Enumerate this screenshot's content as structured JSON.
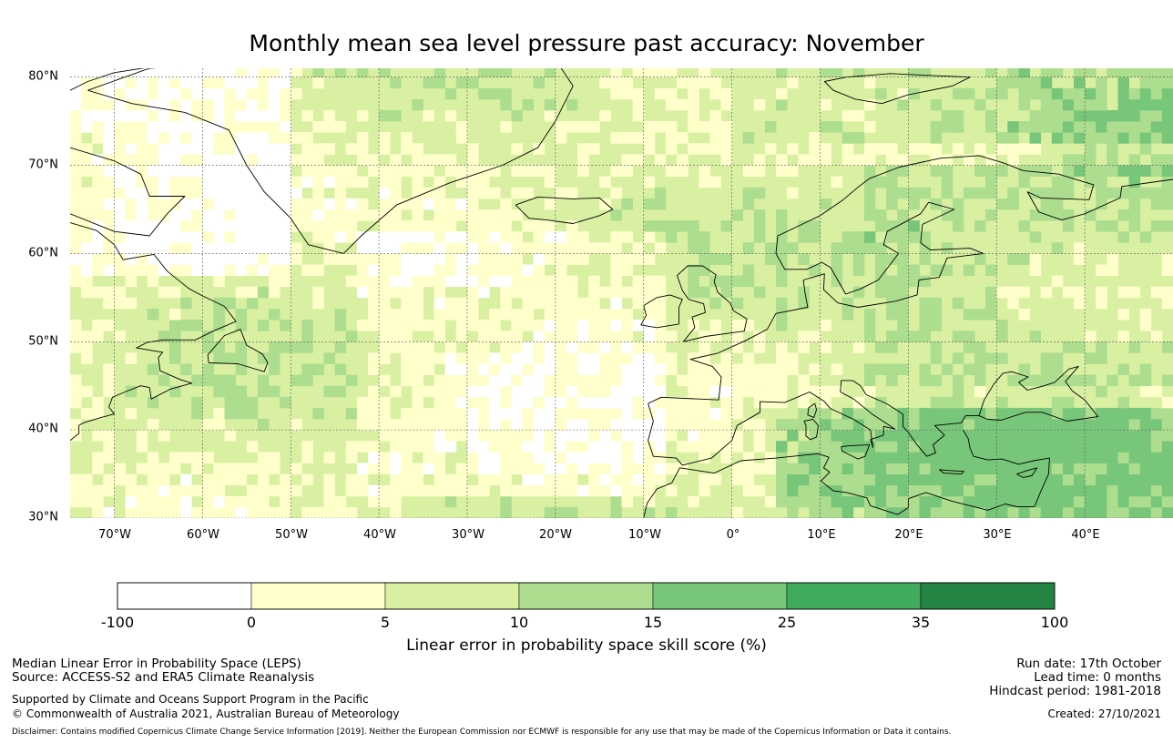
{
  "title": "Monthly mean sea level pressure past accuracy: November",
  "colors": {
    "bins": [
      "#ffffff",
      "#ffffcc",
      "#d9f0a3",
      "#addd8e",
      "#78c679",
      "#41ab5d",
      "#238443"
    ],
    "land_border": "#000000",
    "grid": "#555555"
  },
  "map": {
    "lat_labels": [
      "80°N",
      "70°N",
      "60°N",
      "50°N",
      "40°N",
      "30°N"
    ],
    "lat_values": [
      80,
      70,
      60,
      50,
      40,
      30
    ],
    "lon_labels": [
      "70°W",
      "60°W",
      "50°W",
      "40°W",
      "30°W",
      "20°W",
      "10°W",
      "0°",
      "10°E",
      "20°E",
      "30°E",
      "40°E"
    ],
    "lon_values": [
      -70,
      -60,
      -50,
      -40,
      -30,
      -20,
      -10,
      0,
      10,
      20,
      30,
      40
    ],
    "lon_range": [
      -75,
      50
    ],
    "lat_range": [
      30,
      81
    ]
  },
  "colorbar": {
    "ticks": [
      "-100",
      "0",
      "5",
      "10",
      "15",
      "25",
      "35",
      "100"
    ],
    "label": "Linear error in probability space skill score (%)"
  },
  "footer": {
    "left_line1": "Median Linear Error in Probability Space (LEPS)",
    "left_line2": "Source: ACCESS-S2 and ERA5 Climate Reanalysis",
    "left_line3": "Supported by Climate and Oceans Support Program in the Pacific",
    "left_line4": "© Commonwealth of Australia 2021, Australian Bureau of Meteorology",
    "right_line1": "Run date: 17th October",
    "right_line2": "Lead time: 0 months",
    "right_line3": "Hindcast period: 1981-2018",
    "right_line4": "Created: 27/10/2021",
    "disclaimer": "Disclaimer: Contains modified Copernicus Climate Change Service Information [2019]. Neither the European Commission nor ECMWF is responsible for any use that may be made of the Copernicus Information or Data it contains."
  }
}
